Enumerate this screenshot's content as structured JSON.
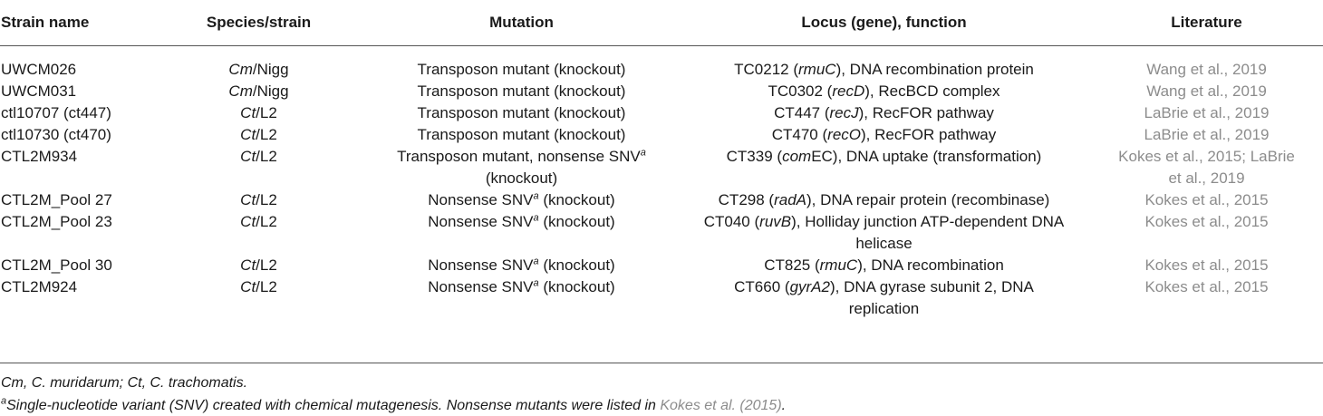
{
  "headers": [
    "Strain name",
    "Species/strain",
    "Mutation",
    "Locus (gene), function",
    "Literature"
  ],
  "rows": [
    {
      "strain": "UWCM026",
      "species": "Cm",
      "species_suffix": "/Nigg",
      "mutation_l1": "Transposon mutant (knockout)",
      "mutation_l2": "",
      "locus_l1_pre": "TC0212 (",
      "gene": "rmuC",
      "locus_l1_post": "), DNA recombination protein",
      "locus_l2": "",
      "lit_l1": "Wang et al., 2019",
      "lit_l2": ""
    },
    {
      "strain": "UWCM031",
      "species": "Cm",
      "species_suffix": "/Nigg",
      "mutation_l1": "Transposon mutant (knockout)",
      "mutation_l2": "",
      "locus_l1_pre": "TC0302 (",
      "gene": "recD",
      "locus_l1_post": "), RecBCD complex",
      "locus_l2": "",
      "lit_l1": "Wang et al., 2019",
      "lit_l2": ""
    },
    {
      "strain": "ctl10707 (ct447)",
      "species": "Ct",
      "species_suffix": "/L2",
      "mutation_l1": "Transposon mutant (knockout)",
      "mutation_l2": "",
      "locus_l1_pre": "CT447 (",
      "gene": "recJ",
      "locus_l1_post": "), RecFOR pathway",
      "locus_l2": "",
      "lit_l1": "LaBrie et al., 2019",
      "lit_l2": ""
    },
    {
      "strain": "ctl10730 (ct470)",
      "species": "Ct",
      "species_suffix": "/L2",
      "mutation_l1": "Transposon mutant (knockout)",
      "mutation_l2": "",
      "locus_l1_pre": "CT470 (",
      "gene": "recO",
      "locus_l1_post": "), RecFOR pathway",
      "locus_l2": "",
      "lit_l1": "LaBrie et al., 2019",
      "lit_l2": ""
    },
    {
      "strain": "CTL2M934",
      "species": "Ct",
      "species_suffix": "/L2",
      "mutation_l1": "Transposon mutant, nonsense SNV",
      "mutation_l2": "(knockout)",
      "locus_l1_pre": "CT339 (",
      "gene": "com",
      "locus_l1_post": "EC), DNA uptake (transformation)",
      "locus_l2": "",
      "lit_l1": "Kokes et al., 2015; LaBrie",
      "lit_l2": "et al., 2019"
    },
    {
      "strain": "CTL2M_Pool 27",
      "species": "Ct",
      "species_suffix": "/L2",
      "mutation_l1": "Nonsense SNV",
      "mutation_l2": "",
      "locus_l1_pre": "CT298 (",
      "gene": "radA",
      "locus_l1_post": "), DNA repair protein (recombinase)",
      "locus_l2": "",
      "lit_l1": "Kokes et al., 2015",
      "lit_l2": ""
    },
    {
      "strain": "CTL2M_Pool 23",
      "species": "Ct",
      "species_suffix": "/L2",
      "mutation_l1": "Nonsense SNV",
      "mutation_l2": "",
      "locus_l1_pre": "CT040 (",
      "gene": "ruvB",
      "locus_l1_post": "), Holliday junction ATP-dependent DNA",
      "locus_l2": "helicase",
      "lit_l1": "Kokes et al., 2015",
      "lit_l2": ""
    },
    {
      "strain": "CTL2M_Pool 30",
      "species": "Ct",
      "species_suffix": "/L2",
      "mutation_l1": "Nonsense SNV",
      "mutation_l2": "",
      "locus_l1_pre": "CT825 (",
      "gene": "rmuC",
      "locus_l1_post": "), DNA recombination",
      "locus_l2": "",
      "lit_l1": "Kokes et al., 2015",
      "lit_l2": ""
    },
    {
      "strain": "CTL2M924",
      "species": "Ct",
      "species_suffix": "/L2",
      "mutation_l1": "Nonsense SNV",
      "mutation_l2": "",
      "locus_l1_pre": "CT660 (",
      "gene": "gyrA2",
      "locus_l1_post": "), DNA gyrase subunit 2, DNA",
      "locus_l2": "replication",
      "lit_l1": "Kokes et al., 2015",
      "lit_l2": ""
    }
  ],
  "superscript_a": "a",
  "knockout_suffix": " (knockout)",
  "footnote_abbrev": "Cm, C. muridarum; Ct, C. trachomatis.",
  "footnote_a_text": "Single-nucleotide variant (SNV) created with chemical mutagenesis. Nonsense mutants were listed in ",
  "footnote_a_ref": "Kokes et al. (2015)",
  "footnote_a_end": "."
}
